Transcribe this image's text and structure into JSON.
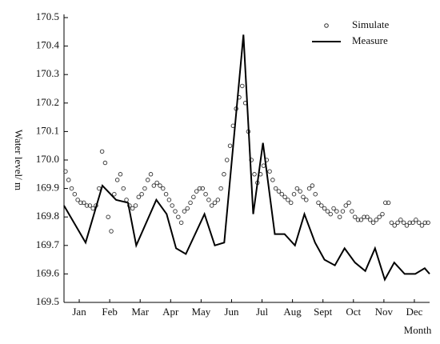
{
  "chart_data": {
    "type": "line",
    "y_label": "Water level/ m",
    "x_label": "Month",
    "xlim": [
      0,
      12
    ],
    "xticks": [
      {
        "value": 0.5,
        "label": "Jan"
      },
      {
        "value": 1.5,
        "label": "Feb"
      },
      {
        "value": 2.5,
        "label": "Mar"
      },
      {
        "value": 3.5,
        "label": "Apr"
      },
      {
        "value": 4.5,
        "label": "May"
      },
      {
        "value": 5.5,
        "label": "Jun"
      },
      {
        "value": 6.5,
        "label": "Jul"
      },
      {
        "value": 7.5,
        "label": "Aug"
      },
      {
        "value": 8.5,
        "label": "Sept"
      },
      {
        "value": 9.5,
        "label": "Oct"
      },
      {
        "value": 10.5,
        "label": "Nov"
      },
      {
        "value": 11.5,
        "label": "Dec"
      }
    ],
    "ylim": [
      169.5,
      170.5
    ],
    "yticks": [
      169.5,
      169.6,
      169.7,
      169.8,
      169.9,
      {
        "value": 170,
        "label": "170.0"
      },
      170.1,
      170.2,
      170.3,
      170.4,
      170.5
    ],
    "legend": "upper right",
    "series": [
      {
        "name": "Simulate",
        "type": "scatter",
        "color": "#333333",
        "x": [
          0.05,
          0.15,
          0.25,
          0.35,
          0.45,
          0.55,
          0.65,
          0.75,
          0.85,
          0.95,
          1.05,
          1.15,
          1.25,
          1.35,
          1.45,
          1.55,
          1.65,
          1.75,
          1.85,
          1.95,
          2.05,
          2.15,
          2.25,
          2.35,
          2.45,
          2.55,
          2.65,
          2.75,
          2.85,
          2.95,
          3.05,
          3.15,
          3.25,
          3.35,
          3.45,
          3.55,
          3.65,
          3.75,
          3.85,
          3.95,
          4.05,
          4.15,
          4.25,
          4.35,
          4.45,
          4.55,
          4.65,
          4.75,
          4.85,
          4.95,
          5.05,
          5.15,
          5.25,
          5.35,
          5.45,
          5.55,
          5.65,
          5.75,
          5.85,
          5.95,
          6.05,
          6.15,
          6.25,
          6.35,
          6.45,
          6.55,
          6.65,
          6.75,
          6.85,
          6.95,
          7.05,
          7.15,
          7.25,
          7.35,
          7.45,
          7.55,
          7.65,
          7.75,
          7.85,
          7.95,
          8.05,
          8.15,
          8.25,
          8.35,
          8.45,
          8.55,
          8.65,
          8.75,
          8.85,
          8.95,
          9.05,
          9.15,
          9.25,
          9.35,
          9.45,
          9.55,
          9.65,
          9.75,
          9.85,
          9.95,
          10.05,
          10.15,
          10.25,
          10.35,
          10.45,
          10.55,
          10.65,
          10.75,
          10.85,
          10.95,
          11.05,
          11.15,
          11.25,
          11.35,
          11.45,
          11.55,
          11.65,
          11.75,
          11.85,
          11.95
        ],
        "values": [
          169.96,
          169.93,
          169.9,
          169.88,
          169.86,
          169.85,
          169.85,
          169.84,
          169.84,
          169.83,
          169.84,
          169.9,
          170.03,
          169.99,
          169.8,
          169.75,
          169.88,
          169.93,
          169.95,
          169.9,
          169.86,
          169.84,
          169.83,
          169.84,
          169.87,
          169.88,
          169.9,
          169.93,
          169.95,
          169.91,
          169.92,
          169.91,
          169.9,
          169.88,
          169.86,
          169.84,
          169.82,
          169.8,
          169.78,
          169.82,
          169.83,
          169.85,
          169.87,
          169.89,
          169.9,
          169.9,
          169.88,
          169.86,
          169.84,
          169.85,
          169.86,
          169.9,
          169.95,
          170.0,
          170.05,
          170.12,
          170.18,
          170.22,
          170.26,
          170.2,
          170.1,
          170.0,
          169.95,
          169.92,
          169.95,
          169.98,
          170.0,
          169.96,
          169.93,
          169.9,
          169.89,
          169.88,
          169.87,
          169.86,
          169.85,
          169.88,
          169.9,
          169.89,
          169.87,
          169.86,
          169.9,
          169.91,
          169.88,
          169.85,
          169.84,
          169.83,
          169.82,
          169.81,
          169.83,
          169.82,
          169.8,
          169.82,
          169.84,
          169.85,
          169.82,
          169.8,
          169.79,
          169.79,
          169.8,
          169.8,
          169.79,
          169.78,
          169.79,
          169.8,
          169.81,
          169.85,
          169.85,
          169.78,
          169.77,
          169.78,
          169.79,
          169.78,
          169.77,
          169.78,
          169.78,
          169.79,
          169.78,
          169.77,
          169.78,
          169.78
        ]
      },
      {
        "name": "Measure",
        "type": "line",
        "color": "#000000",
        "x": [
          0,
          0.71,
          1.26,
          1.71,
          2.1,
          2.37,
          3.03,
          3.37,
          3.68,
          4.0,
          4.61,
          4.95,
          5.26,
          5.89,
          6.21,
          6.53,
          6.92,
          7.24,
          7.58,
          7.89,
          8.24,
          8.55,
          8.89,
          9.21,
          9.55,
          9.89,
          10.21,
          10.53,
          10.84,
          11.18,
          11.53,
          11.84,
          12
        ],
        "values": [
          169.84,
          169.71,
          169.91,
          169.86,
          169.85,
          169.7,
          169.86,
          169.81,
          169.69,
          169.67,
          169.81,
          169.7,
          169.71,
          170.44,
          169.81,
          170.06,
          169.74,
          169.74,
          169.7,
          169.81,
          169.71,
          169.65,
          169.63,
          169.69,
          169.64,
          169.61,
          169.69,
          169.58,
          169.64,
          169.6,
          169.6,
          169.62,
          169.6
        ]
      }
    ]
  }
}
